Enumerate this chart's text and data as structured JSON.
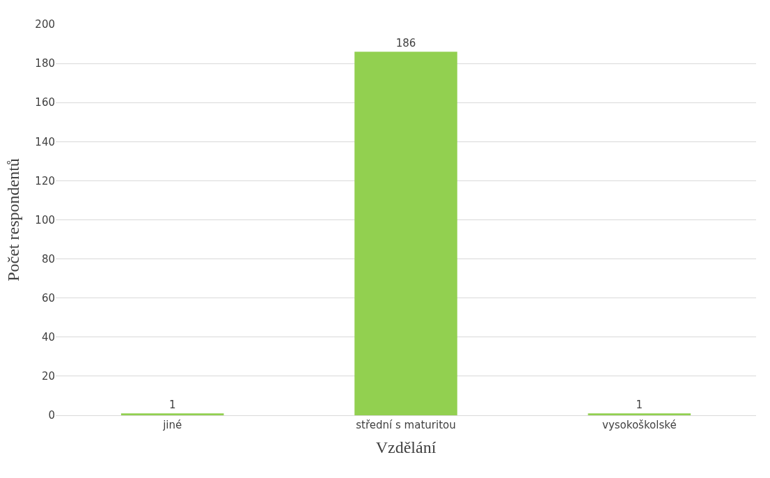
{
  "chart_data": {
    "type": "bar",
    "xlabel": "Vzdělání",
    "ylabel": "Počet respondentů",
    "categories": [
      "jiné",
      "střední s maturitou",
      "vysokoškolské"
    ],
    "values": [
      1,
      186,
      1
    ],
    "color": "#92d050",
    "ylim": [
      0,
      200
    ],
    "yticks": [
      0,
      20,
      40,
      60,
      80,
      100,
      120,
      140,
      160,
      180,
      200
    ],
    "grid": "y",
    "data_labels": true
  }
}
